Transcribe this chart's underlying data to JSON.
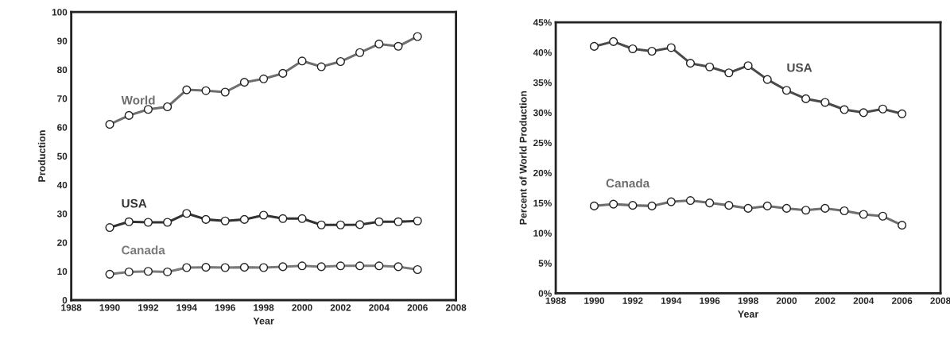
{
  "chart_data": [
    {
      "type": "line",
      "xlabel": "Year",
      "ylabel": "Production",
      "x": [
        1990,
        1991,
        1992,
        1993,
        1994,
        1995,
        1996,
        1997,
        1998,
        1999,
        2000,
        2001,
        2002,
        2003,
        2004,
        2005,
        2006
      ],
      "series": [
        {
          "name": "World",
          "color": "#6e6e6e",
          "values": [
            61,
            64.1,
            66.2,
            67.1,
            73,
            72.7,
            72.2,
            75.6,
            76.8,
            78.7,
            83,
            81,
            82.8,
            85.9,
            88.9,
            88.1,
            91.5
          ]
        },
        {
          "name": "USA",
          "color": "#333333",
          "values": [
            25.2,
            27.2,
            27,
            27,
            30.1,
            28,
            27.5,
            28,
            29.5,
            28.3,
            28.3,
            26.1,
            26.1,
            26.2,
            27.2,
            27.2,
            27.5
          ]
        },
        {
          "name": "Canada",
          "color": "#7a7a7a",
          "values": [
            9,
            9.8,
            10,
            9.8,
            11.3,
            11.4,
            11.3,
            11.4,
            11.3,
            11.6,
            11.9,
            11.6,
            11.9,
            11.9,
            11.9,
            11.6,
            10.6
          ]
        }
      ],
      "xlim": [
        1988,
        2008
      ],
      "xticks": [
        1988,
        1990,
        1992,
        1994,
        1996,
        1998,
        2000,
        2002,
        2004,
        2006,
        2008
      ],
      "ylim": [
        0,
        100
      ],
      "yticks": [
        0,
        10,
        20,
        30,
        40,
        50,
        60,
        70,
        80,
        90,
        100
      ],
      "marker": "circle",
      "grid": false,
      "legend": false
    },
    {
      "type": "line",
      "xlabel": "Year",
      "ylabel": "Percent of World Production",
      "x": [
        1990,
        1991,
        1992,
        1993,
        1994,
        1995,
        1996,
        1997,
        1998,
        1999,
        2000,
        2001,
        2002,
        2003,
        2004,
        2005,
        2006
      ],
      "series": [
        {
          "name": "USA",
          "color": "#4a4a4a",
          "values": [
            41,
            41.8,
            40.6,
            40.2,
            40.8,
            38.2,
            37.6,
            36.6,
            37.8,
            35.5,
            33.7,
            32.3,
            31.7,
            30.5,
            30,
            30.6,
            29.8
          ]
        },
        {
          "name": "Canada",
          "color": "#6e6e6e",
          "values": [
            14.5,
            14.8,
            14.6,
            14.5,
            15.2,
            15.4,
            15,
            14.6,
            14.1,
            14.5,
            14.1,
            13.8,
            14.1,
            13.7,
            13.1,
            12.8,
            11.3
          ]
        }
      ],
      "xlim": [
        1988,
        2008
      ],
      "xticks": [
        1988,
        1990,
        1992,
        1994,
        1996,
        1998,
        2000,
        2002,
        2004,
        2006,
        2008
      ],
      "ylim": [
        0,
        45
      ],
      "yticks": [
        {
          "value": 0,
          "label": "0%"
        },
        {
          "value": 5,
          "label": "5%"
        },
        {
          "value": 10,
          "label": "10%"
        },
        {
          "value": 15,
          "label": "15%"
        },
        {
          "value": 20,
          "label": "20%"
        },
        {
          "value": 25,
          "label": "25%"
        },
        {
          "value": 30,
          "label": "30%"
        },
        {
          "value": 35,
          "label": "35%"
        },
        {
          "value": 40,
          "label": "40%"
        },
        {
          "value": 45,
          "label": "45%"
        }
      ],
      "marker": "circle",
      "grid": false,
      "legend": false
    }
  ]
}
